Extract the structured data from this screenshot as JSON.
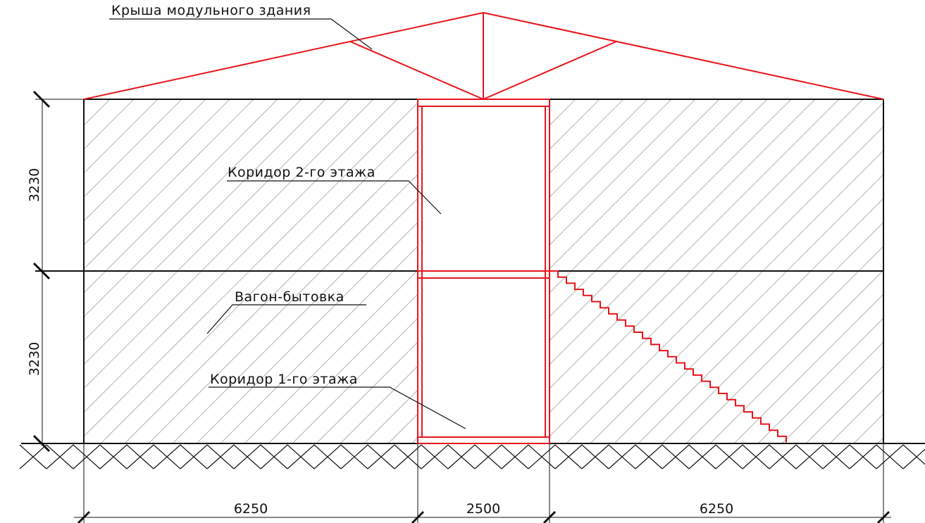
{
  "labels": {
    "roof": "Крыша модульного здания",
    "corridor_2": "Коридор 2-го этажа",
    "cabin": "Вагон-бытовка",
    "corridor_1": "Коридор 1-го этажа"
  },
  "dimensions": {
    "height_upper": "3230",
    "height_lower": "3230",
    "width_left": "6250",
    "width_middle": "2500",
    "width_right": "6250"
  },
  "colors": {
    "structure": "#e8141b",
    "outline": "#111111",
    "hatch": "#b4b4b4"
  }
}
